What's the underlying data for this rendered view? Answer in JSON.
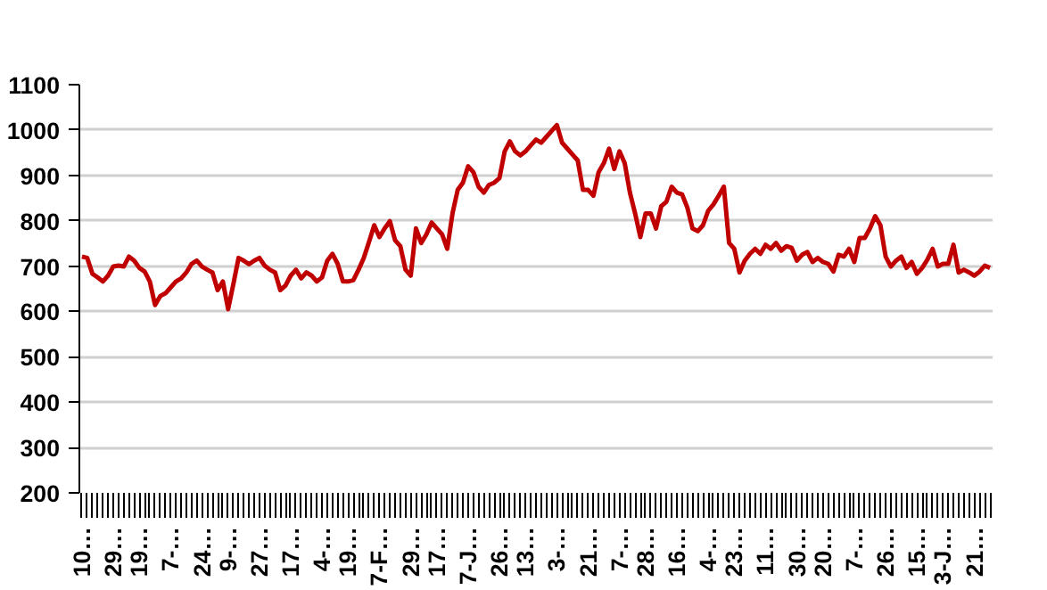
{
  "chart_data": {
    "type": "line",
    "categories": [
      "10…",
      null,
      null,
      null,
      null,
      null,
      "29…",
      null,
      null,
      null,
      null,
      "19…",
      null,
      null,
      null,
      null,
      null,
      "7-…",
      null,
      null,
      null,
      null,
      null,
      "24…",
      null,
      null,
      null,
      null,
      "9-…",
      null,
      null,
      null,
      null,
      null,
      "27…",
      null,
      null,
      null,
      null,
      null,
      "17…",
      null,
      null,
      null,
      null,
      null,
      "4-…",
      null,
      null,
      null,
      null,
      "19…",
      null,
      null,
      null,
      null,
      null,
      "7-F…",
      null,
      null,
      null,
      null,
      null,
      "29…",
      null,
      null,
      null,
      null,
      "17…",
      null,
      null,
      null,
      null,
      null,
      "7-J…",
      null,
      null,
      null,
      null,
      null,
      "26…",
      null,
      null,
      null,
      null,
      "13…",
      null,
      null,
      null,
      null,
      null,
      "3-…",
      null,
      null,
      null,
      null,
      null,
      "21…",
      null,
      null,
      null,
      null,
      null,
      "7-…",
      null,
      null,
      null,
      null,
      "28…",
      null,
      null,
      null,
      null,
      null,
      "16…",
      null,
      null,
      null,
      null,
      null,
      "4-…",
      null,
      null,
      null,
      null,
      "23…",
      null,
      null,
      null,
      null,
      null,
      "11…",
      null,
      null,
      null,
      null,
      null,
      "30…",
      null,
      null,
      null,
      null,
      "20…",
      null,
      null,
      null,
      null,
      null,
      "7-…",
      null,
      null,
      null,
      null,
      null,
      "26…",
      null,
      null,
      null,
      null,
      null,
      "15…",
      null,
      null,
      null,
      null,
      "3-J…",
      null,
      null,
      null,
      null,
      null,
      "21…",
      null,
      null,
      null
    ],
    "series": [
      {
        "color": "#c00000",
        "values": [
          721,
          718,
          683,
          675,
          666,
          679,
          699,
          701,
          699,
          721,
          712,
          696,
          688,
          666,
          614,
          634,
          640,
          653,
          666,
          673,
          686,
          705,
          712,
          699,
          692,
          686,
          647,
          666,
          605,
          660,
          718,
          712,
          704,
          712,
          718,
          701,
          692,
          686,
          647,
          657,
          679,
          692,
          673,
          686,
          679,
          666,
          675,
          712,
          727,
          705,
          666,
          666,
          669,
          692,
          718,
          753,
          790,
          764,
          783,
          799,
          757,
          744,
          692,
          679,
          783,
          751,
          770,
          796,
          783,
          770,
          738,
          816,
          868,
          884,
          920,
          907,
          875,
          862,
          879,
          884,
          894,
          953,
          975,
          953,
          944,
          953,
          966,
          979,
          972,
          985,
          998,
          1011,
          972,
          959,
          946,
          933,
          868,
          868,
          855,
          907,
          927,
          959,
          914,
          953,
          927,
          862,
          816,
          764,
          816,
          816,
          783,
          832,
          842,
          875,
          862,
          858,
          829,
          783,
          777,
          790,
          822,
          836,
          855,
          875,
          751,
          738,
          686,
          712,
          727,
          738,
          727,
          747,
          738,
          751,
          734,
          744,
          740,
          712,
          725,
          731,
          709,
          718,
          709,
          705,
          688,
          725,
          721,
          738,
          709,
          762,
          762,
          783,
          810,
          790,
          721,
          699,
          712,
          721,
          696,
          709,
          683,
          696,
          714,
          738,
          699,
          705,
          705,
          747,
          686,
          692,
          686,
          679,
          688,
          701,
          696
        ]
      }
    ],
    "ylim": [
      200,
      1100
    ],
    "yticks": [
      200,
      300,
      400,
      500,
      600,
      700,
      800,
      900,
      1000,
      1100
    ],
    "grid": "y"
  }
}
